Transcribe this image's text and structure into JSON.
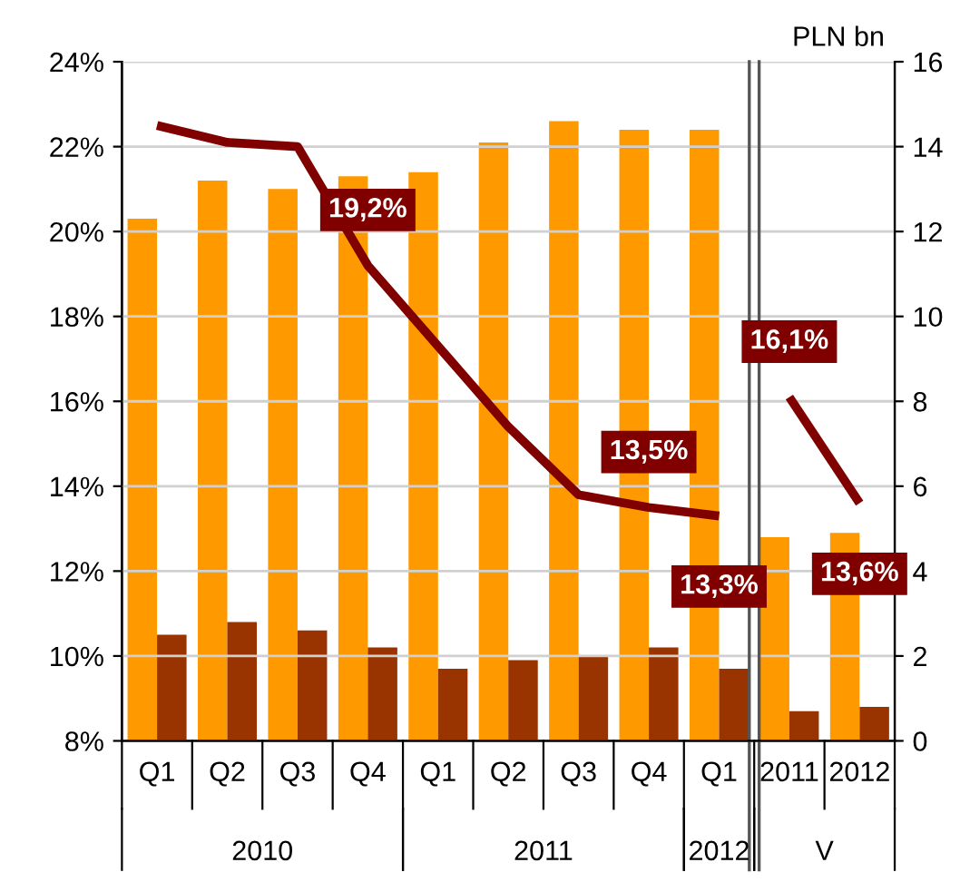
{
  "chart_data": {
    "type": "bar",
    "categories": [
      "Q1",
      "Q2",
      "Q3",
      "Q4",
      "Q1",
      "Q2",
      "Q3",
      "Q4",
      "Q1",
      "2011",
      "2012"
    ],
    "annotations": [
      "2010",
      "2011",
      "2012",
      "V"
    ],
    "y2label": "PLN bn",
    "series": [
      {
        "axis": "y2",
        "color": "#ff9900",
        "values": [
          12.3,
          13.2,
          13.0,
          13.3,
          13.4,
          14.1,
          14.6,
          14.4,
          14.4,
          4.8,
          4.9
        ]
      },
      {
        "axis": "y2",
        "color": "#993300",
        "values": [
          2.5,
          2.8,
          2.6,
          2.2,
          1.7,
          1.9,
          2.0,
          2.2,
          1.7,
          0.7,
          0.8
        ]
      },
      {
        "type": "line",
        "axis": "y",
        "color": "#800000",
        "values": [
          22.5,
          22.1,
          22.0,
          19.2,
          17.3,
          15.4,
          13.8,
          13.5,
          13.3,
          null,
          null
        ],
        "value_labels": [
          null,
          null,
          null,
          "19,2%",
          null,
          null,
          null,
          "13,5%",
          "13,3%",
          null,
          null
        ]
      },
      {
        "type": "line",
        "axis": "y",
        "color": "#800000",
        "values": [
          null,
          null,
          null,
          null,
          null,
          null,
          null,
          null,
          null,
          16.1,
          13.6
        ],
        "value_labels": [
          null,
          null,
          null,
          null,
          null,
          null,
          null,
          null,
          null,
          "16,1%",
          "13,6%"
        ]
      }
    ],
    "ylim": [
      8,
      24
    ],
    "yticks": [
      {
        "value": 8,
        "label": "8%"
      },
      {
        "value": 10,
        "label": "10%"
      },
      {
        "value": 12,
        "label": "12%"
      },
      {
        "value": 14,
        "label": "14%"
      },
      {
        "value": 16,
        "label": "16%"
      },
      {
        "value": 18,
        "label": "18%"
      },
      {
        "value": 20,
        "label": "20%"
      },
      {
        "value": 22,
        "label": "22%"
      },
      {
        "value": 24,
        "label": "24%"
      }
    ],
    "y2lim": [
      0,
      16
    ],
    "y2ticks": [
      0,
      2,
      4,
      6,
      8,
      10,
      12,
      14,
      16
    ],
    "grid": "y"
  }
}
